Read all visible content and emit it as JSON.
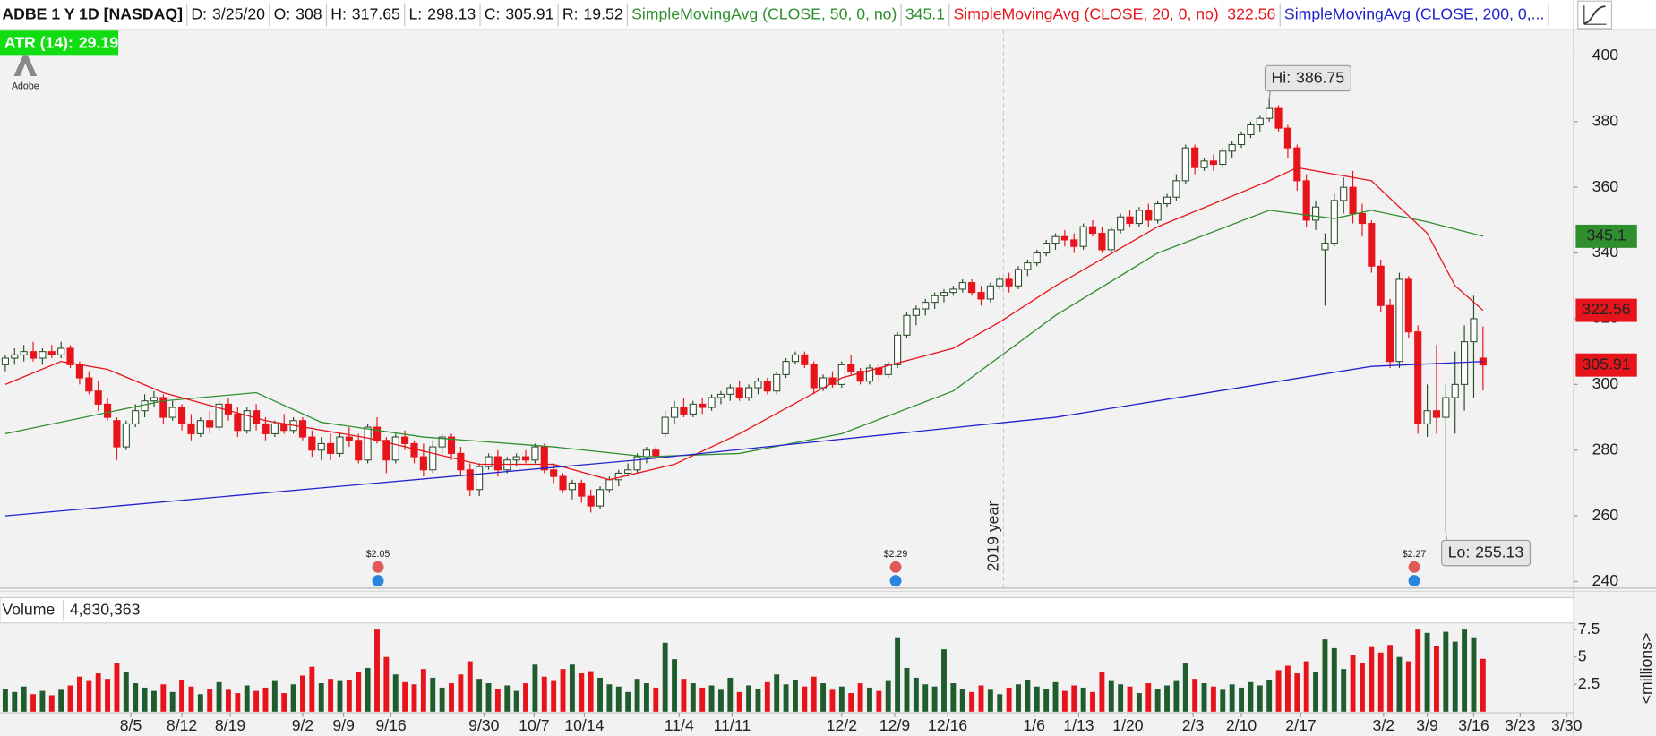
{
  "chart_data": {
    "type": "candlestick",
    "title": "ADBE 1 Y 1D [NASDAQ]",
    "date_label": "D:",
    "date": "3/25/20",
    "ohlc_labels": [
      "O:",
      "H:",
      "L:",
      "C:"
    ],
    "range_label": "R:",
    "range": 19.52,
    "atr_label": "ATR (14):",
    "atr": 29.19,
    "atr_color": "#12dd12",
    "logo_text": "Adobe",
    "up_color": "#2b4d2b",
    "down_color": "#e8141c",
    "volume_up_color": "#1f5c2e",
    "candles": [
      [
        306,
        309,
        304,
        308
      ],
      [
        308,
        311,
        306,
        309
      ],
      [
        309,
        312,
        307,
        310
      ],
      [
        310,
        313,
        307,
        308
      ],
      [
        308,
        311,
        306,
        310
      ],
      [
        310,
        312,
        308,
        309
      ],
      [
        309,
        313,
        308,
        311
      ],
      [
        311,
        312,
        305,
        306
      ],
      [
        306,
        307,
        300,
        302
      ],
      [
        302,
        304,
        297,
        298
      ],
      [
        298,
        301,
        292,
        294
      ],
      [
        294,
        296,
        289,
        290
      ],
      [
        289,
        290,
        277,
        281
      ],
      [
        281,
        289,
        280,
        288
      ],
      [
        288,
        294,
        287,
        292
      ],
      [
        292,
        297,
        290,
        295
      ],
      [
        295,
        298,
        293,
        296
      ],
      [
        296,
        297,
        288,
        290
      ],
      [
        290,
        295,
        289,
        293
      ],
      [
        293,
        294,
        286,
        288
      ],
      [
        288,
        291,
        283,
        285
      ],
      [
        285,
        290,
        284,
        289
      ],
      [
        289,
        292,
        285,
        287
      ],
      [
        287,
        295,
        286,
        294
      ],
      [
        294,
        296,
        289,
        291
      ],
      [
        291,
        293,
        284,
        286
      ],
      [
        286,
        293,
        285,
        292
      ],
      [
        292,
        294,
        286,
        288
      ],
      [
        288,
        290,
        283,
        285
      ],
      [
        285,
        289,
        284,
        288
      ],
      [
        288,
        291,
        285,
        286
      ],
      [
        286,
        290,
        285,
        289
      ],
      [
        289,
        290,
        283,
        284
      ],
      [
        284,
        286,
        278,
        280
      ],
      [
        280,
        284,
        277,
        282
      ],
      [
        282,
        285,
        277,
        279
      ],
      [
        279,
        285,
        278,
        284
      ],
      [
        284,
        287,
        281,
        283
      ],
      [
        283,
        285,
        276,
        277
      ],
      [
        277,
        288,
        276,
        287
      ],
      [
        287,
        290,
        282,
        283
      ],
      [
        283,
        284,
        273,
        277
      ],
      [
        277,
        285,
        276,
        284
      ],
      [
        284,
        286,
        280,
        282
      ],
      [
        282,
        283,
        276,
        278
      ],
      [
        278,
        282,
        272,
        274
      ],
      [
        274,
        283,
        273,
        281
      ],
      [
        281,
        285,
        279,
        284
      ],
      [
        284,
        285,
        277,
        279
      ],
      [
        279,
        281,
        272,
        274
      ],
      [
        274,
        276,
        266,
        268
      ],
      [
        268,
        276,
        266,
        275
      ],
      [
        275,
        279,
        274,
        278
      ],
      [
        278,
        280,
        272,
        274
      ],
      [
        274,
        278,
        273,
        277
      ],
      [
        277,
        279,
        275,
        278
      ],
      [
        278,
        280,
        276,
        277
      ],
      [
        277,
        282,
        276,
        281
      ],
      [
        281,
        282,
        273,
        274
      ],
      [
        274,
        276,
        270,
        272
      ],
      [
        272,
        273,
        267,
        268
      ],
      [
        268,
        271,
        265,
        270
      ],
      [
        270,
        271,
        264,
        266
      ],
      [
        266,
        268,
        261,
        263
      ],
      [
        263,
        269,
        262,
        268
      ],
      [
        268,
        272,
        267,
        271
      ],
      [
        271,
        274,
        269,
        273
      ],
      [
        273,
        276,
        272,
        274
      ],
      [
        274,
        279,
        273,
        278
      ],
      [
        278,
        281,
        276,
        280
      ],
      [
        280,
        281,
        277,
        278
      ],
      [
        285,
        292,
        284,
        290
      ],
      [
        290,
        295,
        288,
        293
      ],
      [
        293,
        296,
        290,
        291
      ],
      [
        291,
        295,
        290,
        294
      ],
      [
        294,
        296,
        291,
        293
      ],
      [
        293,
        297,
        292,
        296
      ],
      [
        296,
        298,
        294,
        297
      ],
      [
        297,
        300,
        295,
        299
      ],
      [
        299,
        301,
        295,
        296
      ],
      [
        296,
        300,
        295,
        299
      ],
      [
        299,
        302,
        297,
        301
      ],
      [
        301,
        302,
        297,
        298
      ],
      [
        298,
        304,
        297,
        303
      ],
      [
        303,
        308,
        302,
        307
      ],
      [
        307,
        310,
        306,
        309
      ],
      [
        309,
        310,
        305,
        306
      ],
      [
        306,
        307,
        297,
        299
      ],
      [
        299,
        303,
        298,
        302
      ],
      [
        302,
        304,
        299,
        300
      ],
      [
        300,
        307,
        299,
        306
      ],
      [
        306,
        309,
        303,
        304
      ],
      [
        304,
        305,
        300,
        301
      ],
      [
        301,
        306,
        300,
        305
      ],
      [
        305,
        306,
        301,
        303
      ],
      [
        303,
        307,
        302,
        306
      ],
      [
        306,
        316,
        305,
        315
      ],
      [
        315,
        322,
        314,
        321
      ],
      [
        321,
        324,
        318,
        323
      ],
      [
        323,
        326,
        321,
        325
      ],
      [
        325,
        328,
        323,
        327
      ],
      [
        327,
        329,
        325,
        328
      ],
      [
        328,
        330,
        327,
        329
      ],
      [
        329,
        332,
        328,
        331
      ],
      [
        331,
        332,
        327,
        328
      ],
      [
        328,
        330,
        324,
        326
      ],
      [
        326,
        331,
        325,
        330
      ],
      [
        330,
        333,
        329,
        332
      ],
      [
        332,
        334,
        328,
        330
      ],
      [
        330,
        336,
        329,
        335
      ],
      [
        335,
        338,
        333,
        337
      ],
      [
        337,
        341,
        336,
        340
      ],
      [
        340,
        344,
        339,
        343
      ],
      [
        343,
        346,
        341,
        345
      ],
      [
        345,
        347,
        342,
        344
      ],
      [
        344,
        346,
        340,
        342
      ],
      [
        342,
        349,
        341,
        348
      ],
      [
        348,
        350,
        345,
        346
      ],
      [
        346,
        348,
        340,
        341
      ],
      [
        341,
        348,
        340,
        347
      ],
      [
        347,
        352,
        346,
        351
      ],
      [
        351,
        353,
        348,
        349
      ],
      [
        349,
        354,
        348,
        353
      ],
      [
        353,
        355,
        348,
        350
      ],
      [
        350,
        356,
        349,
        355
      ],
      [
        355,
        358,
        354,
        357
      ],
      [
        357,
        364,
        356,
        362
      ],
      [
        362,
        373,
        361,
        372
      ],
      [
        372,
        373,
        364,
        366
      ],
      [
        366,
        369,
        365,
        368
      ],
      [
        368,
        370,
        365,
        367
      ],
      [
        367,
        372,
        366,
        371
      ],
      [
        371,
        374,
        369,
        373
      ],
      [
        373,
        377,
        372,
        376
      ],
      [
        376,
        380,
        375,
        379
      ],
      [
        379,
        382,
        377,
        381
      ],
      [
        381,
        386.75,
        380,
        384
      ],
      [
        384,
        385,
        377,
        378
      ],
      [
        378,
        379,
        369,
        372
      ],
      [
        372,
        373,
        359,
        362
      ],
      [
        362,
        364,
        348,
        350
      ],
      [
        350,
        356,
        347,
        354
      ],
      [
        341,
        346,
        324,
        343
      ],
      [
        343,
        358,
        342,
        356
      ],
      [
        356,
        363,
        352,
        360
      ],
      [
        360,
        365,
        349,
        352
      ],
      [
        352,
        355,
        345,
        349
      ],
      [
        349,
        350,
        334,
        336
      ],
      [
        336,
        338,
        322,
        324
      ],
      [
        324,
        326,
        305,
        307
      ],
      [
        307,
        334,
        305,
        332
      ],
      [
        332,
        333,
        314,
        316
      ],
      [
        316,
        318,
        285,
        288
      ],
      [
        288,
        300,
        284,
        292
      ],
      [
        292,
        312,
        285,
        290
      ],
      [
        290,
        300,
        255.13,
        296
      ],
      [
        296,
        310,
        285,
        300
      ],
      [
        300,
        318,
        292,
        313
      ],
      [
        313,
        327,
        296,
        320
      ],
      [
        308,
        317.65,
        298.13,
        305.91
      ]
    ],
    "moving_averages": [
      {
        "name": "SimpleMovingAvg (CLOSE, 50, 0, no)",
        "color": "#2f8f2f",
        "value_tag": true,
        "x": [
          0,
          17,
          27,
          34,
          45,
          59,
          69,
          79,
          90,
          102,
          113,
          124,
          136,
          143,
          147,
          153,
          159
        ],
        "values": [
          285,
          295,
          297.5,
          288.5,
          284,
          281,
          278,
          279,
          285,
          298,
          321,
          340,
          353,
          350.5,
          353,
          349.5,
          345.1
        ]
      },
      {
        "name": "SimpleMovingAvg (CLOSE, 20, 0, no)",
        "color": "#e8141c",
        "value_tag": true,
        "x": [
          0,
          6,
          11,
          17,
          28,
          39,
          51,
          59,
          65,
          72,
          79,
          90,
          102,
          107,
          113,
          124,
          136,
          139,
          147,
          153,
          156,
          159
        ],
        "values": [
          300,
          307,
          304.6,
          297.5,
          289,
          283.7,
          275.7,
          275.7,
          271,
          275.7,
          285,
          302,
          311,
          319,
          330,
          348,
          362,
          366,
          362,
          346,
          330,
          322.56
        ]
      },
      {
        "name": "SimpleMovingAvg (CLOSE, 200, 0,...",
        "color": "#2222cc",
        "value_tag": false,
        "x": [
          0,
          68,
          113,
          147,
          159
        ],
        "values": [
          260,
          277,
          290,
          305.5,
          307
        ]
      }
    ],
    "hi_label": "Hi:",
    "lo_label": "Lo:",
    "year_label": "2019 year",
    "year_x": 107.4,
    "events": [
      {
        "x": 40.1,
        "label": "$2.05"
      },
      {
        "x": 95.8,
        "label": "$2.29"
      },
      {
        "x": 151.6,
        "label": "$2.27"
      }
    ],
    "xlim": [
      -0.57,
      168.75
    ],
    "xticks": [
      {
        "value": 13.5,
        "label": "8/5"
      },
      {
        "value": 19,
        "label": "8/12"
      },
      {
        "value": 24.2,
        "label": "8/19"
      },
      {
        "value": 32,
        "label": "9/2"
      },
      {
        "value": 36.4,
        "label": "9/9"
      },
      {
        "value": 41.5,
        "label": "9/16"
      },
      {
        "value": 51.5,
        "label": "9/30"
      },
      {
        "value": 56.9,
        "label": "10/7"
      },
      {
        "value": 62.3,
        "label": "10/14"
      },
      {
        "value": 72.5,
        "label": "11/4"
      },
      {
        "value": 78.2,
        "label": "11/11"
      },
      {
        "value": 90,
        "label": "12/2"
      },
      {
        "value": 95.7,
        "label": "12/9"
      },
      {
        "value": 101.4,
        "label": "12/16"
      },
      {
        "value": 110.7,
        "label": "1/6"
      },
      {
        "value": 115.5,
        "label": "1/13"
      },
      {
        "value": 120.8,
        "label": "1/20"
      },
      {
        "value": 127.8,
        "label": "2/3"
      },
      {
        "value": 133,
        "label": "2/10"
      },
      {
        "value": 139.4,
        "label": "2/17"
      },
      {
        "value": 148.3,
        "label": "3/2"
      },
      {
        "value": 153,
        "label": "3/9"
      },
      {
        "value": 158,
        "label": "3/16"
      },
      {
        "value": 163,
        "label": "3/23"
      },
      {
        "value": 168,
        "label": "3/30"
      }
    ],
    "ylim": [
      238,
      408
    ],
    "yticks": [
      240,
      260,
      280,
      300,
      320,
      340,
      360,
      380,
      400
    ],
    "grid": false,
    "volume": {
      "name": "Volume",
      "last_label": "4,830,363",
      "unit_label": "<millions>",
      "ylim": [
        0,
        8.1
      ],
      "yticks": [
        2.5,
        5,
        7.5
      ],
      "values": [
        2.1,
        1.8,
        2.3,
        1.6,
        1.9,
        1.5,
        2.0,
        2.4,
        3.2,
        2.8,
        3.5,
        3.0,
        4.4,
        3.6,
        2.6,
        2.2,
        1.9,
        2.5,
        1.8,
        2.9,
        2.3,
        1.6,
        2.1,
        2.7,
        2.0,
        1.7,
        2.4,
        1.9,
        2.2,
        2.8,
        1.7,
        2.5,
        3.3,
        4.1,
        2.6,
        3.0,
        2.8,
        2.9,
        3.6,
        4.0,
        7.5,
        5.0,
        3.4,
        2.7,
        2.5,
        3.9,
        3.1,
        2.2,
        2.6,
        3.4,
        4.6,
        3.0,
        2.6,
        2.1,
        2.4,
        1.9,
        2.6,
        4.3,
        3.2,
        2.8,
        3.9,
        4.3,
        3.5,
        3.7,
        3.1,
        2.5,
        2.3,
        1.8,
        3.0,
        2.6,
        2.2,
        6.3,
        4.8,
        3.0,
        2.6,
        2.2,
        2.4,
        2.0,
        3.1,
        1.8,
        2.4,
        2.1,
        2.7,
        3.4,
        2.5,
        2.9,
        2.3,
        3.2,
        2.6,
        2.0,
        2.3,
        1.7,
        2.6,
        2.2,
        1.9,
        2.8,
        6.8,
        4.0,
        3.1,
        2.5,
        2.3,
        5.7,
        2.6,
        2.1,
        1.8,
        2.4,
        2.0,
        1.6,
        2.2,
        2.5,
        2.9,
        2.3,
        2.1,
        2.7,
        1.9,
        2.4,
        2.2,
        1.8,
        3.6,
        2.8,
        2.5,
        2.3,
        1.7,
        2.6,
        2.1,
        2.4,
        2.8,
        4.4,
        3.0,
        2.6,
        2.3,
        2.0,
        2.5,
        2.2,
        2.7,
        2.4,
        2.9,
        3.8,
        4.2,
        3.5,
        4.6,
        3.6,
        6.6,
        5.8,
        3.9,
        5.2,
        4.4,
        5.9,
        5.4,
        6.1,
        5.0,
        4.6,
        7.5,
        7.2,
        6.0,
        7.3,
        6.4,
        7.5,
        6.8,
        4.830363
      ]
    }
  }
}
